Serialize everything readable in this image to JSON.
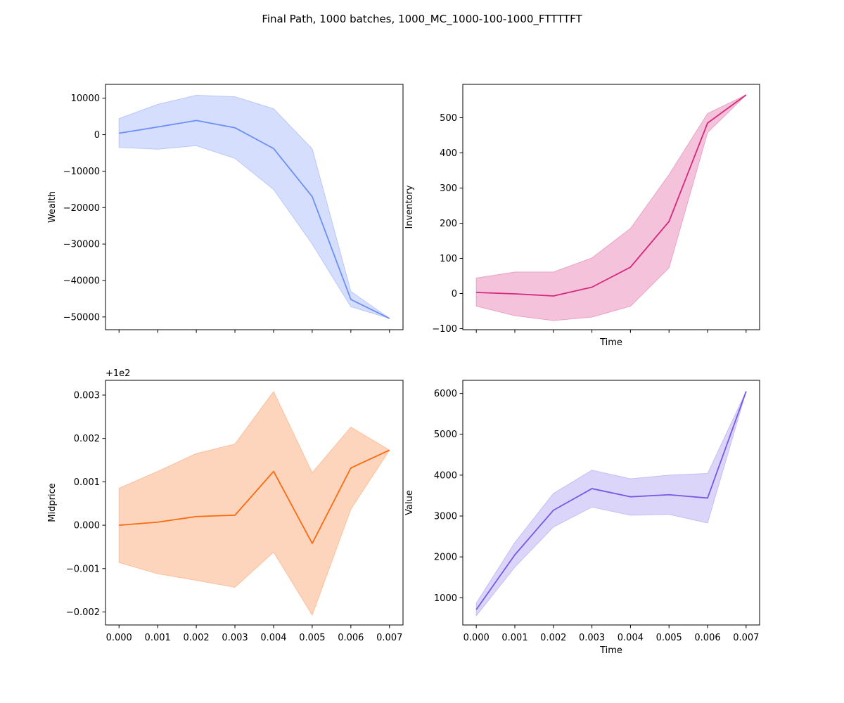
{
  "figure": {
    "title": "Final Path, 1000 batches, 1000_MC_1000-100-1000_FTTTTFT"
  },
  "chart_data": [
    {
      "type": "line",
      "name": "wealth",
      "ylabel": "Wealth",
      "xlabel": "",
      "x": [
        0.0,
        0.001,
        0.002,
        0.003,
        0.004,
        0.005,
        0.006,
        0.007
      ],
      "series": [
        {
          "values": [
            400,
            2100,
            3900,
            1900,
            -3800,
            -17000,
            -45200,
            -50400
          ],
          "lower": [
            -3500,
            -4000,
            -3000,
            -6500,
            -15000,
            -30000,
            -47200,
            -50400
          ],
          "upper": [
            4400,
            8300,
            10800,
            10400,
            7100,
            -3900,
            -43000,
            -50400
          ]
        }
      ],
      "xlim": [
        -0.00035,
        0.00735
      ],
      "ylim": [
        -53500,
        13800
      ],
      "yticks": [
        10000,
        0,
        -10000,
        -20000,
        -30000,
        -40000,
        -50000
      ],
      "ytick_labels": [
        "10000",
        "0",
        "−10000",
        "−20000",
        "−30000",
        "−40000",
        "−50000"
      ],
      "show_xtick_labels": false,
      "colors": {
        "line": "#6b8ff7",
        "fill": "#d6defd",
        "edge": "#b9c8fb"
      }
    },
    {
      "type": "line",
      "name": "inventory",
      "ylabel": "Inventory",
      "xlabel": "Time",
      "x": [
        0.0,
        0.001,
        0.002,
        0.003,
        0.004,
        0.005,
        0.006,
        0.007
      ],
      "series": [
        {
          "values": [
            3,
            -1,
            -7,
            18,
            75,
            205,
            485,
            565
          ],
          "lower": [
            -36,
            -63,
            -77,
            -67,
            -36,
            73,
            458,
            565
          ],
          "upper": [
            44,
            61,
            61,
            101,
            185,
            338,
            512,
            565
          ]
        }
      ],
      "xlim": [
        -0.00035,
        0.00735
      ],
      "ylim": [
        -103,
        595
      ],
      "yticks": [
        500,
        400,
        300,
        200,
        100,
        0,
        -100
      ],
      "ytick_labels": [
        "500",
        "400",
        "300",
        "200",
        "100",
        "0",
        "−100"
      ],
      "show_xtick_labels": false,
      "colors": {
        "line": "#d6287d",
        "fill": "#f4c3db",
        "edge": "#eaa3c5"
      }
    },
    {
      "type": "line",
      "name": "midprice",
      "ylabel": "Midprice",
      "xlabel": "",
      "offset_label": "+1e2",
      "x": [
        0.0,
        0.001,
        0.002,
        0.003,
        0.004,
        0.005,
        0.006,
        0.007
      ],
      "series": [
        {
          "values": [
            0.0,
            7e-05,
            0.0002,
            0.00023,
            0.00124,
            -0.00042,
            0.00132,
            0.00173
          ],
          "lower": [
            -0.00086,
            -0.00112,
            -0.00127,
            -0.00143,
            -0.00062,
            -0.00207,
            0.00037,
            0.00173
          ],
          "upper": [
            0.00085,
            0.00124,
            0.00165,
            0.00187,
            0.00308,
            0.00121,
            0.00226,
            0.00173
          ]
        }
      ],
      "xlim": [
        -0.00035,
        0.00735
      ],
      "ylim": [
        -0.0023,
        0.00334
      ],
      "yticks": [
        0.003,
        0.002,
        0.001,
        0.0,
        -0.001,
        -0.002
      ],
      "ytick_labels": [
        "0.003",
        "0.002",
        "0.001",
        "0.000",
        "−0.001",
        "−0.002"
      ],
      "show_xtick_labels": true,
      "xtick_labels": [
        "0.000",
        "0.001",
        "0.002",
        "0.003",
        "0.004",
        "0.005",
        "0.006",
        "0.007"
      ],
      "colors": {
        "line": "#fc6a0f",
        "fill": "#fdd5bc",
        "edge": "#fbbf9b"
      }
    },
    {
      "type": "line",
      "name": "value",
      "ylabel": "Value",
      "xlabel": "Time",
      "x": [
        0.0,
        0.001,
        0.002,
        0.003,
        0.004,
        0.005,
        0.006,
        0.007
      ],
      "series": [
        {
          "values": [
            710,
            2050,
            3140,
            3670,
            3470,
            3520,
            3440,
            6050
          ],
          "lower": [
            560,
            1750,
            2730,
            3220,
            3020,
            3040,
            2830,
            6050
          ],
          "upper": [
            870,
            2350,
            3550,
            4120,
            3910,
            4000,
            4040,
            6050
          ]
        }
      ],
      "xlim": [
        -0.00035,
        0.00735
      ],
      "ylim": [
        334,
        6320
      ],
      "yticks": [
        6000,
        5000,
        4000,
        3000,
        2000,
        1000
      ],
      "ytick_labels": [
        "6000",
        "5000",
        "4000",
        "3000",
        "2000",
        "1000"
      ],
      "show_xtick_labels": true,
      "xtick_labels": [
        "0.000",
        "0.001",
        "0.002",
        "0.003",
        "0.004",
        "0.005",
        "0.006",
        "0.007"
      ],
      "colors": {
        "line": "#7759e3",
        "fill": "#dcd5fa",
        "edge": "#c7bcf5"
      }
    }
  ]
}
